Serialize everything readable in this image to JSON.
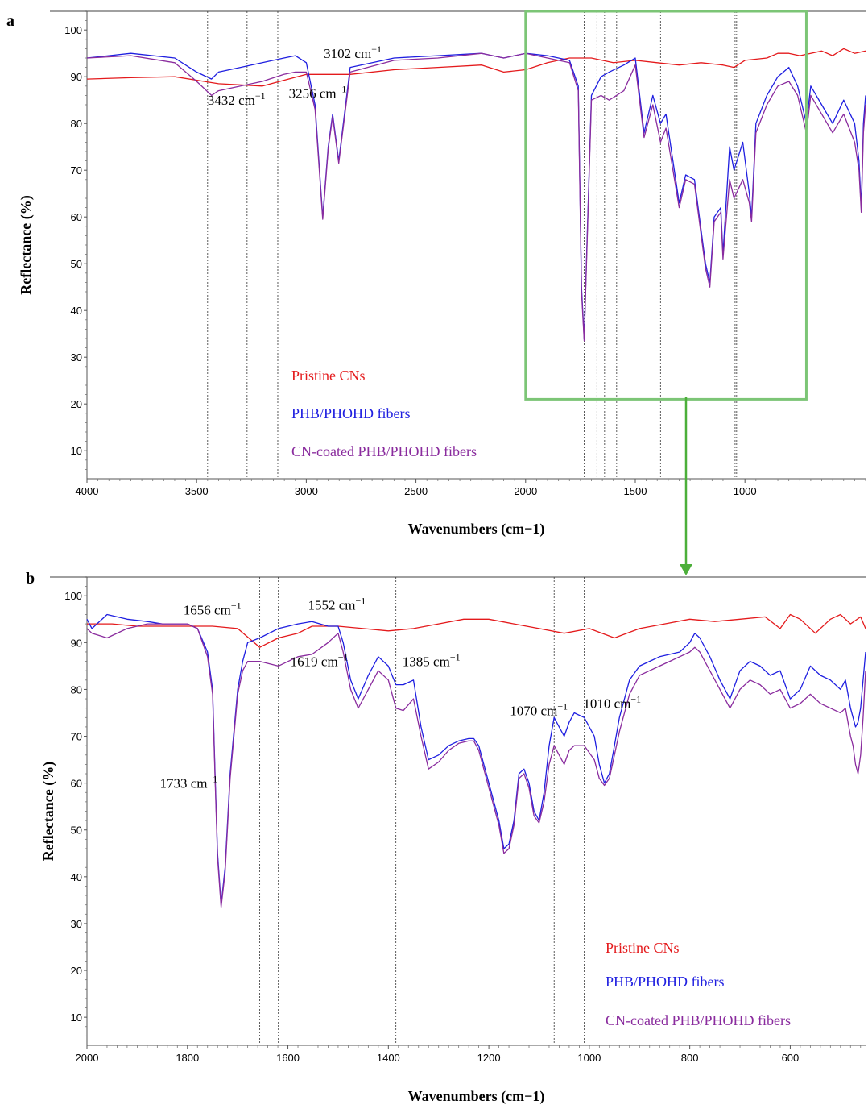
{
  "colors": {
    "pristine": "#e41a1c",
    "phb": "#1f1fe0",
    "cn_coated": "#8a2c9e",
    "highlight_box": "#7cc576",
    "arrow": "#4caf3a"
  },
  "chart_data": [
    {
      "panel": "a",
      "type": "line",
      "xlabel": "Wavenumbers (cm−1)",
      "ylabel": "Reflectance (%)",
      "xlim": [
        4000,
        450
      ],
      "ylim": [
        4,
        104
      ],
      "x_reversed": true,
      "grid": false,
      "legend_position": "bottom-center",
      "x_ticks": [
        4000,
        3500,
        3000,
        2500,
        2000,
        1500,
        1000
      ],
      "y_ticks": [
        10,
        20,
        30,
        40,
        50,
        60,
        70,
        80,
        90,
        100
      ],
      "reference_lines": [
        3450,
        3270,
        3130,
        1733,
        1675,
        1640,
        1585,
        1385,
        1045,
        1038
      ],
      "highlight_region": {
        "x": [
          2000,
          720
        ],
        "y": [
          21,
          104
        ]
      },
      "annotations": [
        {
          "text": "3432 cm",
          "sup": "−1",
          "x": 3450,
          "y": 84
        },
        {
          "text": "3256 cm",
          "sup": "−1",
          "x": 3080,
          "y": 85.5
        },
        {
          "text": "3102 cm",
          "sup": "−1",
          "x": 2920,
          "y": 94
        }
      ],
      "legend": [
        "Pristine CNs",
        "PHB/PHOHD fibers",
        "CN-coated PHB/PHOHD fibers"
      ],
      "series": [
        {
          "name": "Pristine CNs",
          "x": [
            4000,
            3800,
            3600,
            3400,
            3200,
            3000,
            2800,
            2600,
            2400,
            2200,
            2100,
            2000,
            1900,
            1800,
            1700,
            1650,
            1600,
            1500,
            1400,
            1300,
            1200,
            1100,
            1050,
            1000,
            900,
            850,
            800,
            750,
            700,
            650,
            600,
            550,
            500,
            450
          ],
          "y": [
            89.5,
            89.8,
            90,
            88.5,
            88,
            90.5,
            90.5,
            91.5,
            92,
            92.5,
            91,
            91.5,
            93,
            94,
            94,
            93.5,
            93,
            93.5,
            93,
            92.5,
            93,
            92.5,
            92,
            93.5,
            94,
            95,
            95,
            94.5,
            95,
            95.5,
            94.5,
            96,
            95,
            95.5
          ]
        },
        {
          "name": "PHB/PHOHD fibers",
          "x": [
            4000,
            3800,
            3600,
            3500,
            3432,
            3400,
            3300,
            3200,
            3102,
            3050,
            3000,
            2960,
            2925,
            2900,
            2880,
            2852,
            2800,
            2600,
            2400,
            2200,
            2100,
            2000,
            1900,
            1800,
            1760,
            1745,
            1733,
            1720,
            1700,
            1656,
            1619,
            1552,
            1500,
            1460,
            1420,
            1385,
            1360,
            1300,
            1270,
            1230,
            1180,
            1160,
            1140,
            1110,
            1100,
            1070,
            1050,
            1010,
            980,
            970,
            950,
            900,
            850,
            800,
            760,
            720,
            700,
            650,
            600,
            550,
            500,
            480,
            470,
            460,
            450
          ],
          "y": [
            94,
            95,
            94,
            91,
            89.5,
            91,
            92,
            93,
            94,
            94.5,
            93,
            84,
            60,
            75,
            82,
            72,
            92,
            94,
            94.5,
            95,
            94,
            95,
            94.5,
            93.5,
            88,
            45,
            34,
            55,
            86,
            90,
            91,
            92.5,
            94,
            78,
            86,
            80,
            82,
            63,
            69,
            68,
            50,
            46,
            60,
            62,
            52,
            75,
            70,
            76,
            65,
            60,
            80,
            86,
            90,
            92,
            88,
            80,
            88,
            84,
            80,
            85,
            80,
            72,
            62,
            80,
            86
          ]
        },
        {
          "name": "CN-coated PHB/PHOHD fibers",
          "x": [
            4000,
            3800,
            3600,
            3500,
            3432,
            3400,
            3300,
            3200,
            3102,
            3050,
            3000,
            2960,
            2925,
            2900,
            2880,
            2852,
            2800,
            2600,
            2400,
            2200,
            2100,
            2000,
            1900,
            1800,
            1760,
            1745,
            1733,
            1720,
            1700,
            1656,
            1619,
            1552,
            1500,
            1460,
            1420,
            1385,
            1360,
            1300,
            1270,
            1230,
            1180,
            1160,
            1140,
            1110,
            1100,
            1070,
            1050,
            1010,
            980,
            970,
            950,
            900,
            850,
            800,
            760,
            720,
            700,
            650,
            600,
            550,
            500,
            480,
            470,
            460,
            450
          ],
          "y": [
            94,
            94.5,
            93,
            89,
            86,
            87,
            88,
            89,
            90.5,
            91,
            91,
            83,
            59.5,
            74.5,
            81.5,
            71.5,
            91,
            93.5,
            94,
            95,
            94,
            95,
            94,
            93,
            87,
            44,
            33.5,
            54,
            85,
            86,
            85,
            87,
            92.5,
            77,
            84,
            76,
            79,
            62,
            68,
            67,
            49,
            45,
            59,
            61,
            51,
            68,
            64,
            68,
            63,
            59,
            78,
            84,
            88,
            89,
            86,
            78,
            86,
            82,
            78,
            82,
            76,
            70,
            61,
            78,
            84
          ]
        }
      ]
    },
    {
      "panel": "b",
      "type": "line",
      "xlabel": "Wavenumbers (cm−1)",
      "ylabel": "Reflectance (%)",
      "xlim": [
        2000,
        450
      ],
      "ylim": [
        4,
        104
      ],
      "x_reversed": true,
      "grid": false,
      "legend_position": "bottom-right",
      "x_ticks": [
        2000,
        1800,
        1600,
        1400,
        1200,
        1000,
        800,
        600
      ],
      "y_ticks": [
        10,
        20,
        30,
        40,
        50,
        60,
        70,
        80,
        90,
        100
      ],
      "reference_lines": [
        1733,
        1656,
        1619,
        1552,
        1385,
        1070,
        1010
      ],
      "annotations": [
        {
          "text": "1733 cm",
          "sup": "−1",
          "x": 1855,
          "y": 59
        },
        {
          "text": "1656 cm",
          "sup": "−1",
          "x": 1808,
          "y": 96
        },
        {
          "text": "1619 cm",
          "sup": "−1",
          "x": 1595,
          "y": 85
        },
        {
          "text": "1552 cm",
          "sup": "−1",
          "x": 1560,
          "y": 97
        },
        {
          "text": "1385 cm",
          "sup": "−1",
          "x": 1372,
          "y": 85
        },
        {
          "text": "1070 cm",
          "sup": "−1",
          "x": 1158,
          "y": 74.5
        },
        {
          "text": "1010 cm",
          "sup": "−1",
          "x": 1012,
          "y": 76
        }
      ],
      "legend": [
        "Pristine CNs",
        "PHB/PHOHD fibers",
        "CN-coated PHB/PHOHD fibers"
      ],
      "series": [
        {
          "name": "Pristine CNs",
          "x": [
            2000,
            1950,
            1900,
            1850,
            1800,
            1750,
            1700,
            1656,
            1619,
            1580,
            1552,
            1500,
            1450,
            1400,
            1350,
            1300,
            1250,
            1200,
            1150,
            1100,
            1050,
            1000,
            950,
            900,
            850,
            800,
            750,
            700,
            650,
            620,
            600,
            580,
            550,
            520,
            500,
            480,
            460,
            450
          ],
          "y": [
            94,
            94,
            93.5,
            93.5,
            93.5,
            93.5,
            93,
            89,
            91,
            92,
            93.5,
            93.5,
            93,
            92.5,
            93,
            94,
            95,
            95,
            94,
            93,
            92,
            93,
            91,
            93,
            94,
            95,
            94.5,
            95,
            95.5,
            93,
            96,
            95,
            92,
            95,
            96,
            94,
            95.5,
            93
          ]
        },
        {
          "name": "PHB/PHOHD fibers",
          "x": [
            2000,
            1990,
            1960,
            1920,
            1880,
            1850,
            1800,
            1780,
            1760,
            1750,
            1745,
            1740,
            1733,
            1725,
            1715,
            1700,
            1690,
            1680,
            1656,
            1619,
            1580,
            1552,
            1520,
            1500,
            1490,
            1475,
            1460,
            1440,
            1420,
            1400,
            1385,
            1370,
            1350,
            1335,
            1320,
            1300,
            1280,
            1260,
            1240,
            1230,
            1220,
            1200,
            1180,
            1170,
            1160,
            1150,
            1140,
            1130,
            1120,
            1110,
            1100,
            1090,
            1080,
            1070,
            1060,
            1050,
            1040,
            1030,
            1010,
            990,
            980,
            970,
            960,
            950,
            940,
            920,
            900,
            880,
            860,
            840,
            820,
            800,
            790,
            780,
            760,
            740,
            720,
            700,
            680,
            660,
            640,
            620,
            600,
            580,
            560,
            540,
            520,
            500,
            490,
            480,
            475,
            470,
            465,
            460,
            455,
            450
          ],
          "y": [
            95,
            93,
            96,
            95,
            94.5,
            94,
            94,
            93,
            88,
            80,
            62,
            45,
            34,
            42,
            62,
            80,
            86,
            90,
            91,
            93,
            94,
            94.5,
            93.5,
            93.5,
            90,
            82,
            78,
            83,
            87,
            85,
            81,
            81,
            82,
            72,
            65,
            66,
            68,
            69,
            69.5,
            69.5,
            68,
            60,
            52,
            46,
            47,
            52,
            62,
            63,
            60,
            54,
            52,
            58,
            68,
            74,
            72,
            70,
            73,
            75,
            74,
            70,
            64,
            60,
            62,
            68,
            74,
            82,
            85,
            86,
            87,
            87.5,
            88,
            90,
            92,
            91,
            87,
            82,
            78,
            84,
            86,
            85,
            83,
            84,
            78,
            80,
            85,
            83,
            82,
            80,
            82,
            76,
            74,
            72,
            73,
            76,
            82,
            88
          ]
        },
        {
          "name": "CN-coated PHB/PHOHD fibers",
          "x": [
            2000,
            1990,
            1960,
            1920,
            1880,
            1850,
            1800,
            1780,
            1760,
            1750,
            1745,
            1740,
            1733,
            1725,
            1715,
            1700,
            1690,
            1680,
            1656,
            1619,
            1580,
            1552,
            1520,
            1500,
            1490,
            1475,
            1460,
            1440,
            1420,
            1400,
            1385,
            1370,
            1350,
            1335,
            1320,
            1300,
            1280,
            1260,
            1240,
            1230,
            1220,
            1200,
            1180,
            1170,
            1160,
            1150,
            1140,
            1130,
            1120,
            1110,
            1100,
            1090,
            1080,
            1070,
            1060,
            1050,
            1040,
            1030,
            1010,
            990,
            980,
            970,
            960,
            950,
            940,
            920,
            900,
            880,
            860,
            840,
            820,
            800,
            790,
            780,
            760,
            740,
            720,
            700,
            680,
            660,
            640,
            620,
            600,
            580,
            560,
            540,
            520,
            500,
            490,
            480,
            475,
            470,
            465,
            460,
            455,
            450
          ],
          "y": [
            93,
            92,
            91,
            93,
            94,
            94,
            94,
            93,
            87,
            79,
            61,
            44,
            33.5,
            41,
            61,
            79,
            84,
            86,
            86,
            85,
            87,
            87.5,
            90,
            92,
            88,
            80,
            76,
            80,
            84,
            82,
            76,
            75.5,
            78,
            70,
            63,
            64.5,
            67,
            68.5,
            69,
            69,
            67,
            59,
            51,
            45,
            46,
            51,
            61,
            62,
            59,
            53,
            51.5,
            56,
            64,
            68,
            66,
            64,
            67,
            68,
            68,
            65,
            61,
            59.5,
            61,
            66,
            71,
            79,
            83,
            84,
            85,
            86,
            87,
            88,
            89,
            88,
            84,
            80,
            76,
            80,
            82,
            81,
            79,
            80,
            76,
            77,
            79,
            77,
            76,
            75,
            76,
            70,
            68,
            64,
            62,
            66,
            74,
            84
          ]
        }
      ]
    }
  ]
}
